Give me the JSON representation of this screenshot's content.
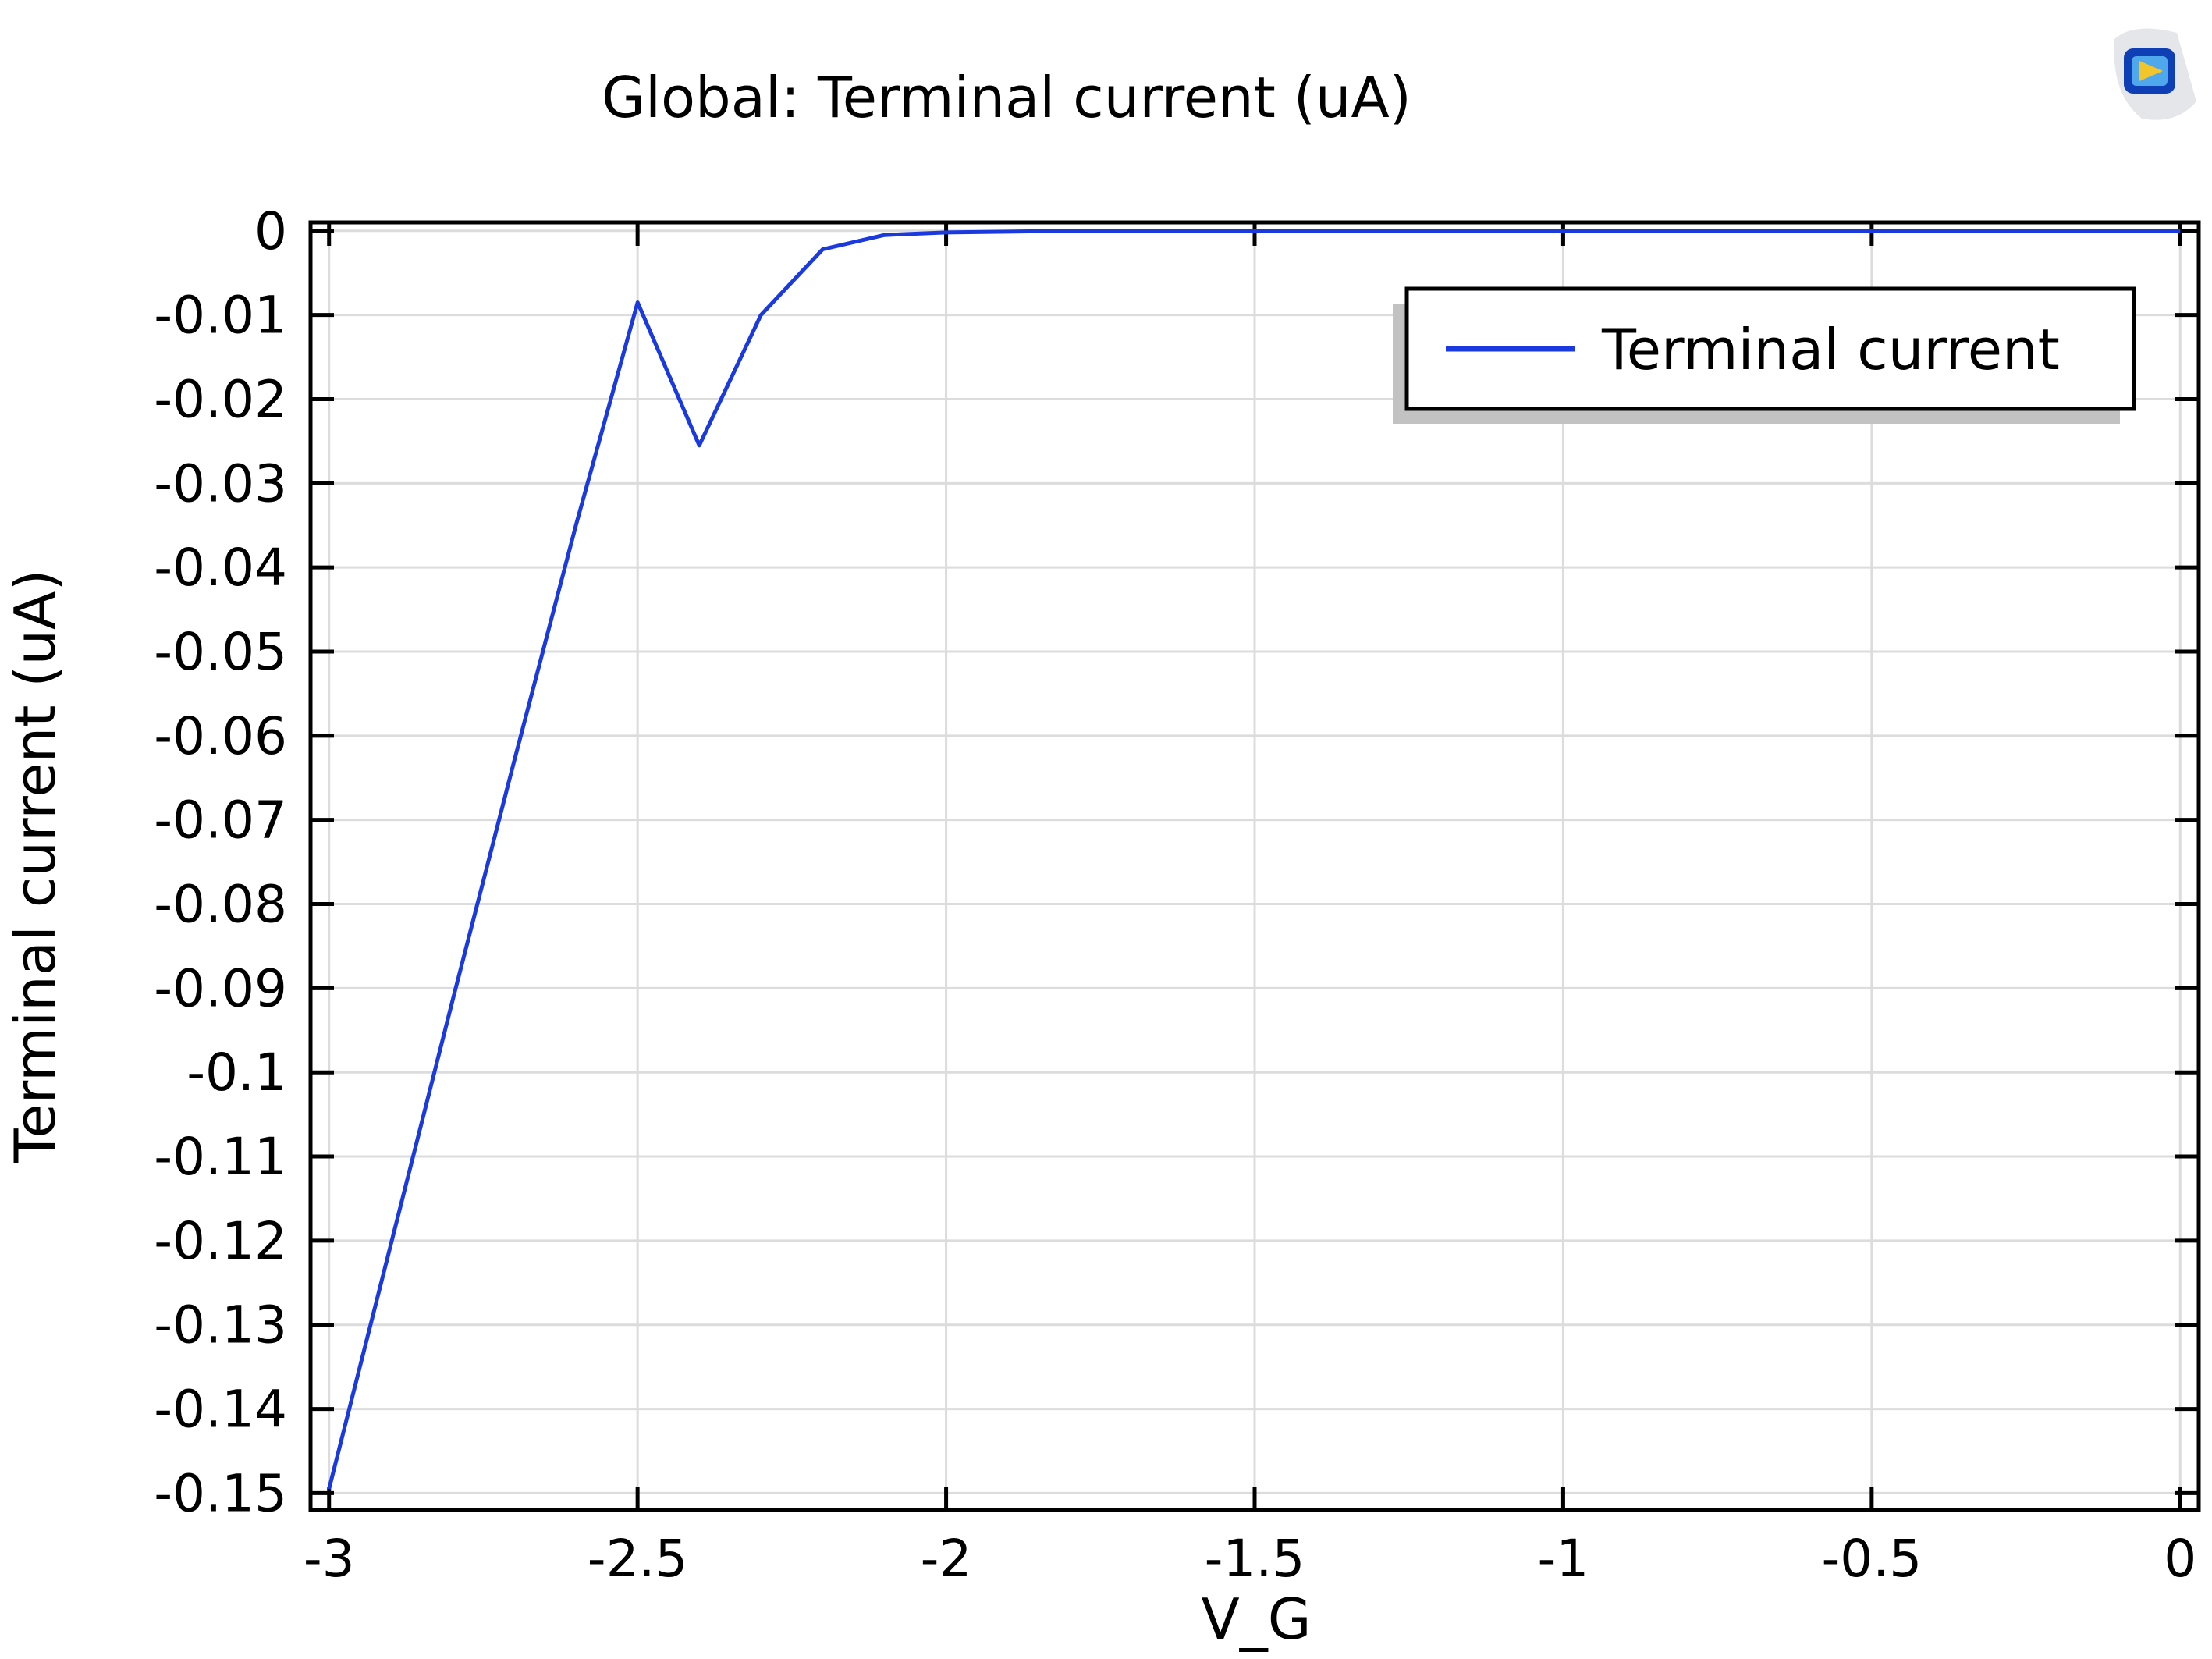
{
  "chart_data": {
    "type": "line",
    "title": "Global: Terminal current (uA)",
    "xlabel": "V_G",
    "ylabel": "Terminal current (uA)",
    "xlim": [
      -3.03,
      0.03
    ],
    "ylim": [
      -0.152,
      0.001
    ],
    "x_ticks": [
      -3,
      -2.5,
      -2,
      -1.5,
      -1,
      -0.5,
      0
    ],
    "x_tick_labels": [
      "-3",
      "-2.5",
      "-2",
      "-1.5",
      "-1",
      "-0.5",
      "0"
    ],
    "y_ticks": [
      0,
      -0.01,
      -0.02,
      -0.03,
      -0.04,
      -0.05,
      -0.06,
      -0.07,
      -0.08,
      -0.09,
      -0.1,
      -0.11,
      -0.12,
      -0.13,
      -0.14,
      -0.15
    ],
    "y_tick_labels": [
      "0",
      "-0.01",
      "-0.02",
      "-0.03",
      "-0.04",
      "-0.05",
      "-0.06",
      "-0.07",
      "-0.08",
      "-0.09",
      "-0.1",
      "-0.11",
      "-0.12",
      "-0.13",
      "-0.14",
      "-0.15"
    ],
    "grid": true,
    "legend_position": "top-right",
    "series": [
      {
        "name": "Terminal current",
        "color": "#1a3ae0",
        "x": [
          -3.0,
          -2.9,
          -2.8,
          -2.7,
          -2.6,
          -2.5,
          -2.4,
          -2.3,
          -2.2,
          -2.1,
          -2.0,
          -1.9,
          -1.8,
          -1.6,
          -1.4,
          -1.2,
          -1.0,
          -0.8,
          -0.6,
          -0.4,
          -0.2,
          0.0
        ],
        "y": [
          -0.1495,
          -0.1205,
          -0.0915,
          -0.063,
          -0.035,
          -0.0085,
          -0.0255,
          -0.01,
          -0.0022,
          -0.0005,
          -0.0002,
          -0.0001,
          0.0,
          0.0,
          0.0,
          0.0,
          0.0,
          0.0,
          0.0,
          0.0,
          0.0,
          0.0
        ]
      }
    ]
  }
}
